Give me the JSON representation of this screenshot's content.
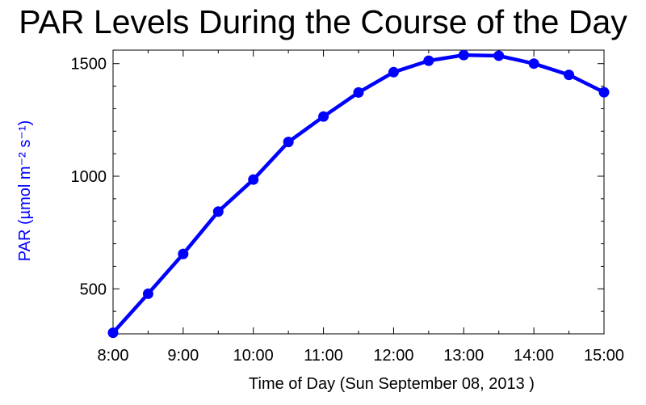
{
  "chart_data": {
    "type": "line",
    "title": "PAR Levels During the Course of the Day",
    "xlabel": "Time of Day  (Sun  September 08, 2013 )",
    "ylabel": "PAR (µmol m⁻² s⁻¹)",
    "x": [
      8.0,
      8.5,
      9.0,
      9.5,
      10.0,
      10.5,
      11.0,
      11.5,
      12.0,
      12.5,
      13.0,
      13.5,
      14.0,
      14.5,
      15.0
    ],
    "series": [
      {
        "name": "PAR",
        "color": "#0000ff",
        "values": [
          305,
          478,
          655,
          843,
          985,
          1152,
          1265,
          1372,
          1462,
          1513,
          1538,
          1535,
          1500,
          1450,
          1373
        ]
      }
    ],
    "xlim": [
      8,
      15
    ],
    "ylim": [
      300,
      1560
    ],
    "xticks": [
      8,
      9,
      10,
      11,
      12,
      13,
      14,
      15
    ],
    "xtick_labels": [
      "8:00",
      "9:00",
      "10:00",
      "11:00",
      "12:00",
      "13:00",
      "14:00",
      "15:00"
    ],
    "yticks": [
      500,
      1000,
      1500
    ],
    "ytick_labels": [
      "500",
      "1000",
      "1500"
    ],
    "grid": false,
    "axis_color": "#000000",
    "ylabel_color": "#0000ff"
  }
}
